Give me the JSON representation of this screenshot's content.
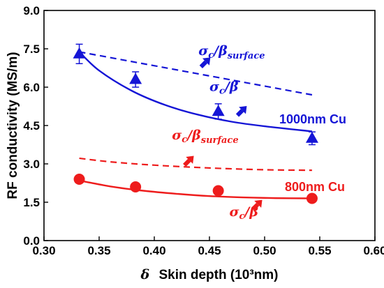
{
  "chart_data": {
    "type": "scatter",
    "xlabel": {
      "symbol": "δ",
      "text": "Skin depth (10³nm)"
    },
    "ylabel": "RF conductivity (MS/m)",
    "xlim": [
      0.3,
      0.6
    ],
    "ylim": [
      0.0,
      9.0
    ],
    "xticks": [
      "0.30",
      "0.35",
      "0.40",
      "0.45",
      "0.50",
      "0.55",
      "0.60"
    ],
    "yticks": [
      "0.0",
      "1.5",
      "3.0",
      "4.5",
      "6.0",
      "7.5",
      "9.0"
    ],
    "grid": false,
    "colors": {
      "blue": "#1515d6",
      "red": "#ee1c1c"
    },
    "series": [
      {
        "name": "1000nm Cu",
        "marker": "triangle",
        "color": "#1515d6",
        "points": [
          {
            "x": 0.332,
            "y": 7.3,
            "err": 0.38
          },
          {
            "x": 0.383,
            "y": 6.3,
            "err": 0.3
          },
          {
            "x": 0.458,
            "y": 5.05,
            "err": 0.3
          },
          {
            "x": 0.543,
            "y": 4.0,
            "err": 0.25
          }
        ],
        "fit": [
          [
            0.332,
            7.38
          ],
          [
            0.35,
            6.65
          ],
          [
            0.38,
            5.85
          ],
          [
            0.41,
            5.3
          ],
          [
            0.44,
            4.92
          ],
          [
            0.47,
            4.65
          ],
          [
            0.5,
            4.47
          ],
          [
            0.543,
            4.27
          ]
        ],
        "surface_line": [
          [
            0.332,
            7.38
          ],
          [
            0.543,
            5.7
          ]
        ]
      },
      {
        "name": "800nm Cu",
        "marker": "circle",
        "color": "#ee1c1c",
        "points": [
          {
            "x": 0.332,
            "y": 2.4
          },
          {
            "x": 0.383,
            "y": 2.1
          },
          {
            "x": 0.458,
            "y": 1.95
          },
          {
            "x": 0.543,
            "y": 1.65
          }
        ],
        "fit": [
          [
            0.332,
            2.35
          ],
          [
            0.36,
            2.12
          ],
          [
            0.39,
            1.95
          ],
          [
            0.42,
            1.83
          ],
          [
            0.45,
            1.74
          ],
          [
            0.48,
            1.69
          ],
          [
            0.51,
            1.66
          ],
          [
            0.543,
            1.65
          ]
        ],
        "surface_line": [
          [
            0.332,
            3.22
          ],
          [
            0.36,
            3.08
          ],
          [
            0.4,
            2.95
          ],
          [
            0.45,
            2.84
          ],
          [
            0.5,
            2.77
          ],
          [
            0.543,
            2.75
          ]
        ]
      }
    ],
    "annotations": [
      {
        "id": "blue-surface",
        "base": "σ",
        "sub1": "c",
        "mid": "/β",
        "sub2": "surface",
        "color": "#1515d6",
        "at": [
          0.44,
          7.25
        ],
        "arrow_at": [
          0.445,
          6.95
        ]
      },
      {
        "id": "blue-sigma",
        "base": "σ",
        "sub1": "c",
        "mid": "/β",
        "sub2": "",
        "color": "#1515d6",
        "at": [
          0.45,
          5.85
        ],
        "arrow_at": [
          0.478,
          5.05
        ]
      },
      {
        "id": "red-surface",
        "base": "σ",
        "sub1": "c",
        "mid": "/β",
        "sub2": "surface",
        "color": "#ee1c1c",
        "at": [
          0.416,
          3.95
        ],
        "arrow_at": [
          0.43,
          3.1
        ]
      },
      {
        "id": "red-sigma",
        "base": "σ",
        "sub1": "c",
        "mid": "/β",
        "sub2": "",
        "color": "#ee1c1c",
        "at": [
          0.468,
          0.95
        ],
        "arrow_at": [
          0.492,
          1.38
        ]
      }
    ]
  }
}
